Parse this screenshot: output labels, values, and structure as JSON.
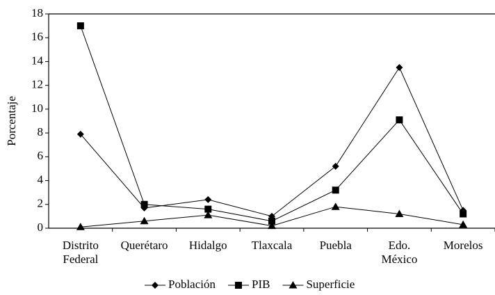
{
  "chart_data": {
    "type": "line",
    "ylabel": "Porcentaje",
    "categories": [
      "Distrito Federal",
      "Querétaro",
      "Hidalgo",
      "Tlaxcala",
      "Puebla",
      "Edo. México",
      "Morelos"
    ],
    "series": [
      {
        "name": "Población",
        "color": "#000000",
        "marker": "diamond",
        "values": [
          7.9,
          1.7,
          2.4,
          1.0,
          5.2,
          13.5,
          1.5
        ]
      },
      {
        "name": "PIB",
        "color": "#000000",
        "marker": "square",
        "values": [
          17.0,
          2.0,
          1.6,
          0.6,
          3.2,
          9.1,
          1.2
        ]
      },
      {
        "name": "Superficie",
        "color": "#000000",
        "marker": "triangle",
        "values": [
          0.1,
          0.6,
          1.1,
          0.2,
          1.8,
          1.2,
          0.3
        ]
      }
    ],
    "ylim": [
      0,
      18
    ],
    "yticks": [
      0,
      2,
      4,
      6,
      8,
      10,
      12,
      14,
      16,
      18
    ],
    "legend": "bottom"
  }
}
